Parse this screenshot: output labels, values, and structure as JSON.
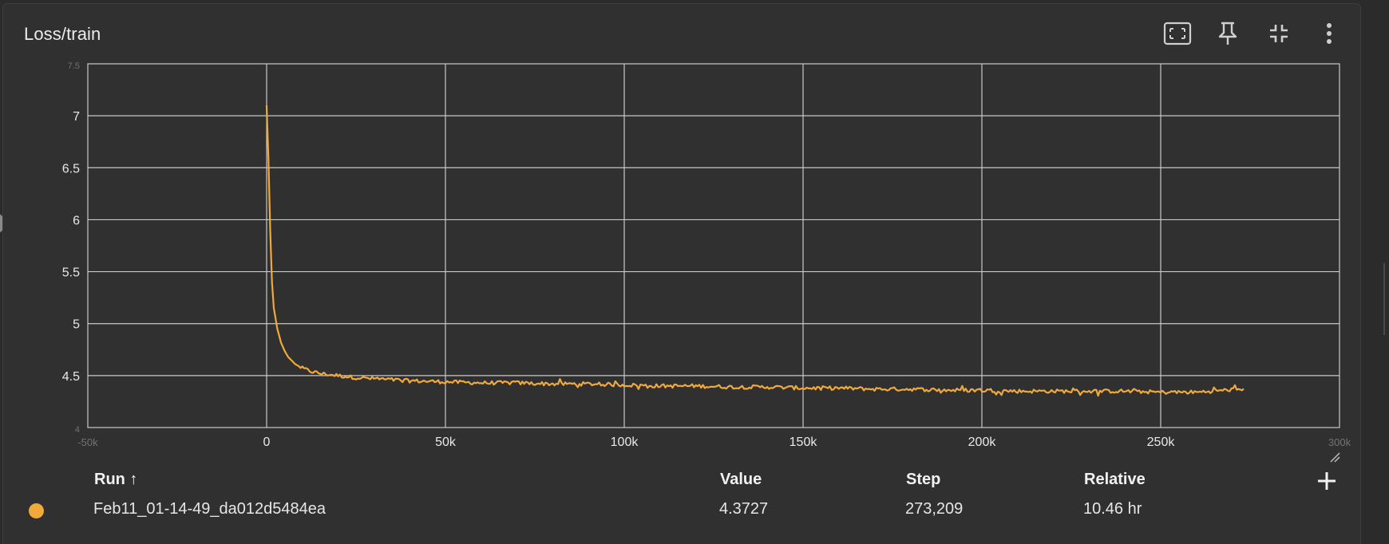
{
  "card": {
    "title": "Loss/train"
  },
  "toolbar": {
    "icons": [
      "fit-domain-icon",
      "pin-icon",
      "collapse-icon",
      "more-vert-icon"
    ]
  },
  "colors": {
    "background": "#303030",
    "grid": "#c8c8c8",
    "series": "#f0a93b",
    "text": "#e8e8e8"
  },
  "chart_data": {
    "type": "line",
    "title": "Loss/train",
    "xlabel": "",
    "ylabel": "",
    "xlim": [
      -50000,
      300000
    ],
    "ylim": [
      4.0,
      7.5
    ],
    "x_ticks": [
      {
        "value": -50000,
        "label": "-50k"
      },
      {
        "value": 0,
        "label": "0"
      },
      {
        "value": 50000,
        "label": "50k"
      },
      {
        "value": 100000,
        "label": "100k"
      },
      {
        "value": 150000,
        "label": "150k"
      },
      {
        "value": 200000,
        "label": "200k"
      },
      {
        "value": 250000,
        "label": "250k"
      },
      {
        "value": 300000,
        "label": "300k"
      }
    ],
    "y_ticks": [
      {
        "value": 4.0,
        "label": "4"
      },
      {
        "value": 4.5,
        "label": "4.5"
      },
      {
        "value": 5.0,
        "label": "5"
      },
      {
        "value": 5.5,
        "label": "5.5"
      },
      {
        "value": 6.0,
        "label": "6"
      },
      {
        "value": 6.5,
        "label": "6.5"
      },
      {
        "value": 7.0,
        "label": "7"
      },
      {
        "value": 7.5,
        "label": "7.5"
      }
    ],
    "grid": true,
    "legend": "none",
    "series": [
      {
        "color": "#f0a93b",
        "x": [
          0,
          500,
          1000,
          1500,
          2000,
          3000,
          4000,
          5000,
          6000,
          8000,
          10000,
          12500,
          15000,
          20000,
          25000,
          30000,
          40000,
          50000,
          60000,
          70000,
          80000,
          90000,
          100000,
          110000,
          120000,
          130000,
          140000,
          150000,
          160000,
          170000,
          180000,
          190000,
          200000,
          210000,
          220000,
          230000,
          240000,
          250000,
          260000,
          273209
        ],
        "y": [
          7.1,
          6.6,
          5.9,
          5.4,
          5.15,
          4.95,
          4.82,
          4.74,
          4.68,
          4.61,
          4.57,
          4.54,
          4.52,
          4.5,
          4.48,
          4.47,
          4.45,
          4.44,
          4.43,
          4.43,
          4.42,
          4.42,
          4.41,
          4.4,
          4.4,
          4.39,
          4.39,
          4.38,
          4.38,
          4.37,
          4.37,
          4.36,
          4.36,
          4.35,
          4.35,
          4.35,
          4.35,
          4.34,
          4.34,
          4.3727
        ]
      }
    ]
  },
  "table": {
    "headers": {
      "run": "Run ↑",
      "value": "Value",
      "step": "Step",
      "relative": "Relative"
    },
    "rows": [
      {
        "run": "Feb11_01-14-49_da012d5484ea",
        "value": "4.3727",
        "step": "273,209",
        "relative": "10.46 hr",
        "color": "#f0a93b"
      }
    ]
  }
}
